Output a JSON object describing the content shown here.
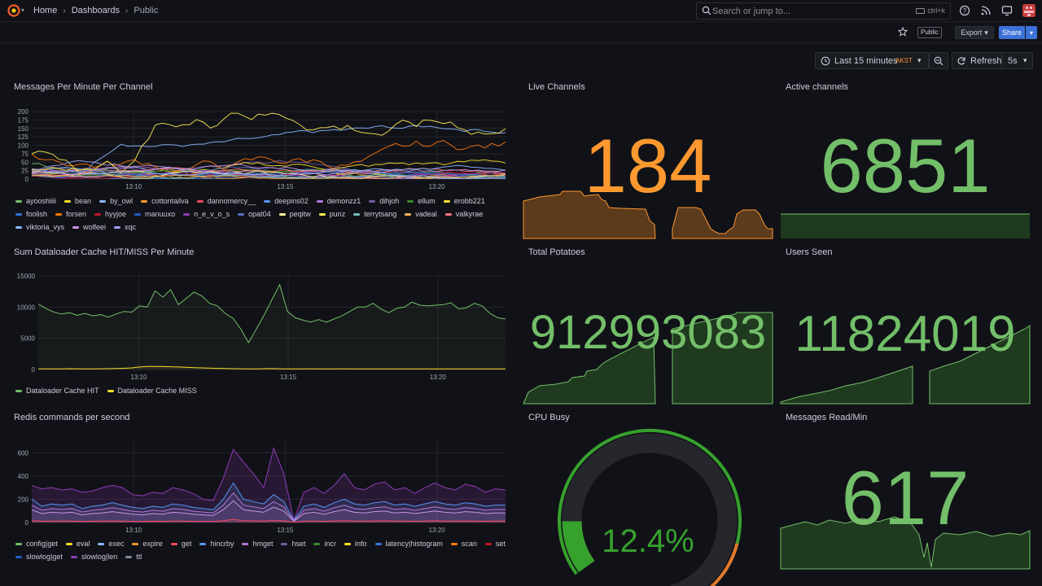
{
  "breadcrumb": {
    "home": "Home",
    "dashboards": "Dashboards",
    "current": "Public"
  },
  "search": {
    "placeholder": "Search or jump to...",
    "shortcut": "ctrl+k"
  },
  "actions": {
    "public_badge": "Public",
    "export_label": "Export",
    "share_label": "Share"
  },
  "timepicker": {
    "range": "Last 15 minutes",
    "timezone": "AKST",
    "refresh_label": "Refresh",
    "interval": "5s"
  },
  "colors": {
    "green": "#73bf69",
    "orange": "#ff9830",
    "bg": "#111217",
    "blue_btn": "#3d71d9"
  },
  "panels": {
    "messages_per_minute": {
      "title": "Messages Per Minute Per Channel"
    },
    "live_channels": {
      "title": "Live Channels",
      "value": "184"
    },
    "active_channels": {
      "title": "Active channels",
      "value": "6851"
    },
    "dataloader": {
      "title": "Sum Dataloader Cache HIT/MISS Per Minute"
    },
    "total_potatoes": {
      "title": "Total Potatoes",
      "value": "912993083"
    },
    "users_seen": {
      "title": "Users Seen",
      "value": "11824019"
    },
    "redis": {
      "title": "Redis commands per second"
    },
    "cpu_busy": {
      "title": "CPU Busy",
      "value": "12.4%",
      "value_fraction": 0.124
    },
    "messages_read": {
      "title": "Messages Read/Min",
      "value": "617"
    }
  },
  "chart_data": [
    {
      "type": "line",
      "title": "Messages Per Minute Per Channel",
      "x_ticks": [
        "13:10",
        "13:15",
        "13:20"
      ],
      "y_ticks": [
        "0",
        "25",
        "50",
        "75",
        "100",
        "125",
        "150",
        "175",
        "200"
      ],
      "ylim": [
        0,
        200
      ],
      "legend": [
        "ayooshiiii",
        "bean",
        "by_owl",
        "cottontailva",
        "dannomercy__",
        "deepins02",
        "demonzz1",
        "dihjoh",
        "ellum",
        "erobb221",
        "foolish",
        "forsen",
        "hyyjoe",
        "manuuxo",
        "n_e_v_o_s",
        "opat04",
        "peqitw",
        "punz",
        "terrytsang",
        "vadeal",
        "valkyrae",
        "viktoria_vys",
        "wolfeei",
        "xqc"
      ],
      "legend_colors": [
        "#73bf69",
        "#fade2a",
        "#8ab8ff",
        "#ff9830",
        "#f2495c",
        "#5794f2",
        "#b877d9",
        "#705da0",
        "#37872d",
        "#fade2a",
        "#3274d9",
        "#ff780a",
        "#c4162a",
        "#1f60c4",
        "#8f3bb8",
        "#5a6dbd",
        "#fff899",
        "#ffee52",
        "#73bfb8",
        "#ffb357",
        "#ff7383",
        "#8ab8ff",
        "#ca95e5",
        "#a2a0f0"
      ]
    },
    {
      "type": "line",
      "title": "Sum Dataloader Cache HIT/MISS Per Minute",
      "x_ticks": [
        "13:10",
        "13:15",
        "13:20"
      ],
      "y_ticks": [
        "0",
        "5000",
        "10000",
        "15000"
      ],
      "ylim": [
        0,
        15000
      ],
      "series": [
        {
          "name": "Dataloader Cache HIT",
          "color": "#73bf69",
          "values": [
            10500,
            9800,
            9200,
            8900,
            9100,
            8700,
            9000,
            8600,
            8800,
            8400,
            8900,
            9300,
            9200,
            10200,
            10000,
            12600,
            11600,
            12800,
            10400,
            11400,
            12400,
            11800,
            10600,
            10200,
            9000,
            8200,
            6500,
            4300,
            6500,
            8700,
            11200,
            13600,
            9300,
            8300,
            7900,
            7600,
            8000,
            7600,
            8100,
            8600,
            9300,
            10000,
            10000,
            10600,
            9700,
            9100,
            9800,
            10000,
            10800,
            10300,
            10200,
            10300,
            10400,
            10700,
            9700,
            9900,
            10600,
            10200,
            9000,
            8300,
            8100
          ]
        },
        {
          "name": "Dataloader Cache MISS",
          "color": "#fade2a",
          "values": [
            100,
            120,
            110,
            100,
            130,
            120,
            110,
            100,
            120,
            130,
            150,
            200,
            260,
            400,
            480,
            500,
            470,
            450,
            400,
            350,
            300,
            260,
            220,
            180,
            150,
            130,
            120,
            100,
            110,
            130,
            140,
            120,
            110,
            100,
            110,
            120,
            110,
            100,
            110,
            120,
            110,
            100,
            90,
            100,
            110,
            100,
            90,
            100,
            110,
            100,
            90,
            100,
            110,
            100,
            110,
            100,
            90,
            100,
            110,
            100,
            100
          ]
        }
      ]
    },
    {
      "type": "area",
      "title": "Redis commands per second",
      "x_ticks": [
        "13:10",
        "13:15",
        "13:20"
      ],
      "y_ticks": [
        "0",
        "200",
        "400",
        "600"
      ],
      "ylim": [
        0,
        700
      ],
      "legend": [
        "config|get",
        "eval",
        "exec",
        "expire",
        "get",
        "hincrby",
        "hmget",
        "hset",
        "incr",
        "info",
        "latency|histogram",
        "scan",
        "set",
        "slowlog|get",
        "slowlog|len",
        "ttl"
      ],
      "legend_colors": [
        "#73bf69",
        "#fade2a",
        "#8ab8ff",
        "#ff9830",
        "#f2495c",
        "#5794f2",
        "#b877d9",
        "#705da0",
        "#37872d",
        "#fade2a",
        "#3274d9",
        "#ff780a",
        "#c4162a",
        "#1f60c4",
        "#8f3bb8",
        "#7f8a9a"
      ]
    }
  ]
}
